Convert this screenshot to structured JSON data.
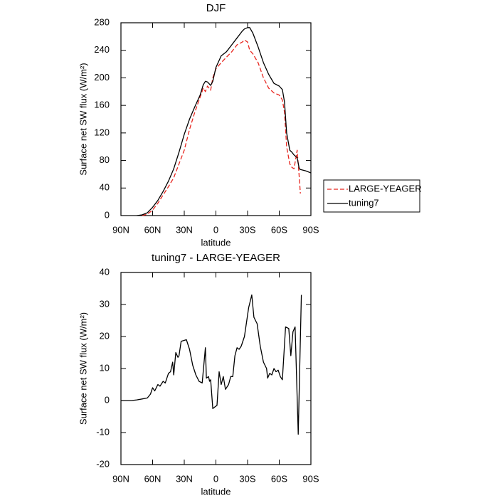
{
  "chart_data": [
    {
      "type": "line",
      "title": "DJF",
      "xlabel": "latitude",
      "ylabel": "Surface net SW flux (W/m²)",
      "x": [
        75,
        70,
        65,
        60,
        55,
        50,
        45,
        40,
        35,
        30,
        25,
        20,
        15,
        12,
        10,
        8,
        5,
        3,
        0,
        -5,
        -10,
        -15,
        -20,
        -25,
        -27,
        -30,
        -32,
        -35,
        -40,
        -45,
        -50,
        -55,
        -60,
        -63,
        -65,
        -67,
        -70,
        -72,
        -74,
        -77,
        -79,
        -80,
        -85,
        -90
      ],
      "series": [
        {
          "name": "LARGE-YEAGER",
          "color": "#e8261f",
          "dash": true,
          "values": [
            null,
            0,
            2,
            8,
            18,
            30,
            42,
            55,
            75,
            95,
            125,
            150,
            172,
            185,
            180,
            188,
            182,
            200,
            213,
            222,
            230,
            238,
            248,
            252,
            255,
            252,
            240,
            235,
            222,
            200,
            185,
            178,
            175,
            168,
            150,
            100,
            75,
            70,
            68,
            95,
            55,
            32,
            null,
            null
          ]
        },
        {
          "name": "tuning7",
          "color": "#000000",
          "dash": false,
          "values": [
            0,
            1,
            4,
            12,
            22,
            35,
            50,
            68,
            92,
            118,
            140,
            158,
            175,
            190,
            195,
            194,
            189,
            195,
            215,
            232,
            238,
            248,
            258,
            268,
            271,
            273,
            273,
            265,
            245,
            222,
            205,
            192,
            188,
            183,
            165,
            120,
            95,
            92,
            88,
            84,
            68,
            67,
            65,
            62
          ]
        }
      ],
      "xlim": [
        90,
        -90
      ],
      "xticks": [
        {
          "value": 90,
          "label": "90N"
        },
        {
          "value": 60,
          "label": "60N"
        },
        {
          "value": 30,
          "label": "30N"
        },
        0,
        {
          "value": -30,
          "label": "30S"
        },
        {
          "value": -60,
          "label": "60S"
        },
        {
          "value": -90,
          "label": "90S"
        }
      ],
      "ylim": [
        0,
        280
      ],
      "yticks": [
        0,
        40,
        80,
        120,
        160,
        200,
        240,
        280
      ],
      "legend": "right"
    },
    {
      "type": "line",
      "title": "tuning7 - LARGE-YEAGER",
      "xlabel": "latitude",
      "ylabel": "Surface net SW flux (W/m²)",
      "x": [
        90,
        80,
        75,
        70,
        65,
        62,
        60,
        58,
        55,
        53,
        50,
        48,
        45,
        43,
        41,
        40,
        38,
        36,
        35,
        33,
        28,
        25,
        22,
        19,
        16,
        13,
        10,
        9,
        7,
        6,
        5,
        3,
        1,
        -1,
        -3,
        -5,
        -7,
        -9,
        -12,
        -14,
        -16,
        -18,
        -20,
        -22,
        -24,
        -27,
        -31,
        -34,
        -36,
        -39,
        -42,
        -45,
        -48,
        -49,
        -51,
        -53,
        -55,
        -57,
        -59,
        -61,
        -63,
        -66,
        -69,
        -71,
        -73,
        -75,
        -78,
        -81
      ],
      "values": [
        0,
        0,
        0.2,
        0.5,
        0.8,
        2,
        4,
        3,
        5,
        4.5,
        6,
        5.5,
        8.5,
        9,
        12,
        8,
        15,
        13.5,
        14,
        18.5,
        19,
        16,
        11,
        8,
        6,
        5.5,
        16.5,
        7,
        7.5,
        6,
        6.5,
        -2.5,
        -2,
        -1.5,
        9,
        5,
        7.5,
        3.5,
        5,
        7.5,
        7.5,
        14,
        16.5,
        16,
        17,
        20,
        29,
        33,
        26,
        24,
        17,
        12,
        10,
        7,
        8.5,
        8,
        10,
        9,
        9.5,
        7.5,
        6.5,
        23,
        22.5,
        14,
        21.5,
        23,
        -10.5,
        33
      ],
      "color": "#000000",
      "xlim": [
        90,
        -90
      ],
      "xticks": [
        {
          "value": 90,
          "label": "90N"
        },
        {
          "value": 60,
          "label": "60N"
        },
        {
          "value": 30,
          "label": "30N"
        },
        0,
        {
          "value": -30,
          "label": "30S"
        },
        {
          "value": -60,
          "label": "60S"
        },
        {
          "value": -90,
          "label": "90S"
        }
      ],
      "ylim": [
        -20,
        40
      ],
      "yticks": [
        -20,
        -10,
        0,
        10,
        20,
        30,
        40
      ]
    }
  ]
}
